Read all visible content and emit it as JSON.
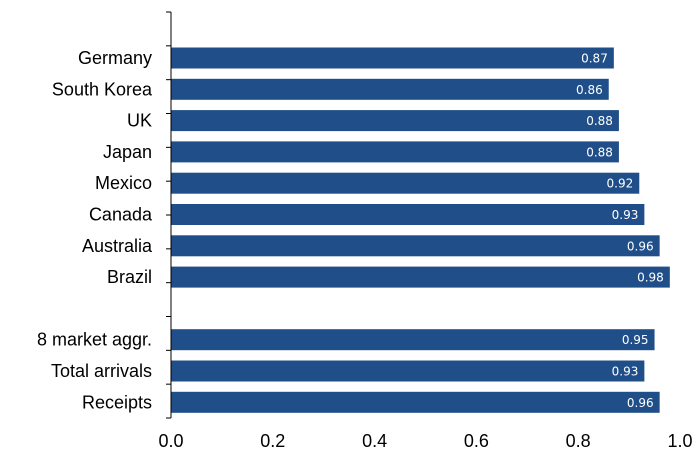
{
  "chart_data": {
    "type": "bar",
    "orientation": "horizontal",
    "categories": [
      "Germany",
      "South Korea",
      "UK",
      "Japan",
      "Mexico",
      "Canada",
      "Australia",
      "Brazil",
      "",
      "8 market aggr.",
      "Total arrivals",
      "Receipts"
    ],
    "values": [
      0.87,
      0.86,
      0.88,
      0.88,
      0.92,
      0.93,
      0.96,
      0.98,
      null,
      0.95,
      0.93,
      0.96
    ],
    "data_labels": [
      "0.87",
      "0.86",
      "0.88",
      "0.88",
      "0.92",
      "0.93",
      "0.96",
      "0.98",
      "",
      "0.95",
      "0.93",
      "0.96"
    ],
    "xlim": [
      0,
      1.0
    ],
    "xticks": [
      0,
      0.2,
      0.4,
      0.6,
      0.8,
      1.0
    ],
    "xtick_labels": [
      "0.0",
      "0.2",
      "0.4",
      "0.6",
      "0.8",
      "1.0"
    ],
    "title": "",
    "xlabel": "",
    "ylabel": "",
    "grid": false,
    "legend": "none",
    "bar_color": "#1f4e89",
    "label_color": "#ffffff"
  }
}
